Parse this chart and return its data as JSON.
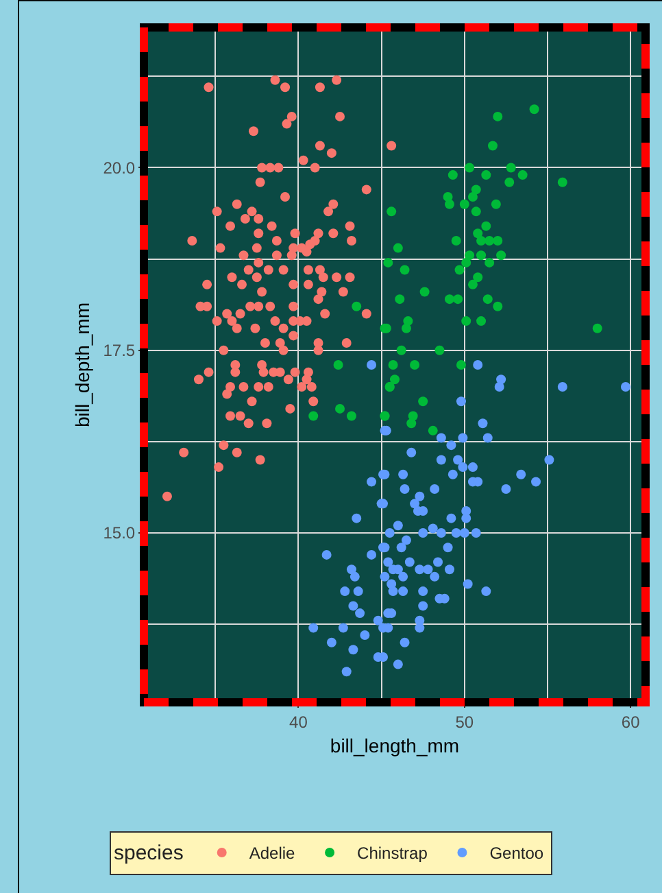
{
  "chart_data": {
    "type": "scatter",
    "xlabel": "bill_length_mm",
    "ylabel": "bill_depth_mm",
    "legend_title": "species",
    "legend": "bottom",
    "grid": true,
    "marker": "circle",
    "xlim": [
      30.7,
      60.9
    ],
    "ylim": [
      12.68,
      21.92
    ],
    "xticks": [
      40,
      50,
      60
    ],
    "yticks": [
      {
        "value": 15,
        "label": "15.0"
      },
      {
        "value": 17.5,
        "label": "17.5"
      },
      {
        "value": 20,
        "label": "20.0"
      }
    ],
    "series": [
      {
        "name": "Adelie",
        "color": "#f8766d",
        "x": [
          34.6,
          38.6,
          39.2,
          41.3,
          42.3,
          39.6,
          39.3,
          42.5,
          37.3,
          41.3,
          42.0,
          45.6,
          40.3,
          37.8,
          38.3,
          38.8,
          41.0,
          37.7,
          39.2,
          44.1,
          35.1,
          36.3,
          42.1,
          41.8,
          37.2,
          36.8,
          37.6,
          38.4,
          35.9,
          43.1,
          33.6,
          37.6,
          39.8,
          41.2,
          42.1,
          43.2,
          38.7,
          35.3,
          37.5,
          39.7,
          40.2,
          40.7,
          41.0,
          36.7,
          38.7,
          39.6,
          40.5,
          37.6,
          39.1,
          37.0,
          38.2,
          40.6,
          41.3,
          41.5,
          36.0,
          37.5,
          42.3,
          43.1,
          40.6,
          39.7,
          34.5,
          36.6,
          37.8,
          41.4,
          42.7,
          34.1,
          34.5,
          37.1,
          37.6,
          38.3,
          39.7,
          41.2,
          41.6,
          44.1,
          35.7,
          36.5,
          35.1,
          36.3,
          37.4,
          36.0,
          38.6,
          39.1,
          39.7,
          40.1,
          40.5,
          39.7,
          38.0,
          38.9,
          39.1,
          41.2,
          41.2,
          42.9,
          35.5,
          34.6,
          34.0,
          36.2,
          36.2,
          35.9,
          35.7,
          36.7,
          37.2,
          37.8,
          37.9,
          38.5,
          38.9,
          37.6,
          38.2,
          39.4,
          39.8,
          40.5,
          40.6,
          40.2,
          40.8,
          40.9,
          39.5,
          35.9,
          36.5,
          37.0,
          38.1,
          35.5,
          36.3,
          33.1,
          37.7,
          35.2,
          32.1
        ],
        "values": [
          21.1,
          21.2,
          21.1,
          21.1,
          21.2,
          20.7,
          20.6,
          20.7,
          20.5,
          20.3,
          20.2,
          20.3,
          20.1,
          20.0,
          20.0,
          20.0,
          20.0,
          19.8,
          19.6,
          19.7,
          19.4,
          19.5,
          19.5,
          19.4,
          19.4,
          19.3,
          19.3,
          19.2,
          19.2,
          19.2,
          19.0,
          19.1,
          19.1,
          19.1,
          19.1,
          19.0,
          19.0,
          18.9,
          18.9,
          18.9,
          18.9,
          18.95,
          19.0,
          18.8,
          18.8,
          18.8,
          18.85,
          18.7,
          18.6,
          18.6,
          18.6,
          18.6,
          18.6,
          18.5,
          18.5,
          18.5,
          18.5,
          18.5,
          18.4,
          18.4,
          18.4,
          18.4,
          18.3,
          18.3,
          18.3,
          18.1,
          18.1,
          18.1,
          18.1,
          18.1,
          18.1,
          18.2,
          18.0,
          18.0,
          18.0,
          18.0,
          17.9,
          17.8,
          17.8,
          17.9,
          17.9,
          17.8,
          17.9,
          17.9,
          17.9,
          17.7,
          17.6,
          17.6,
          17.5,
          17.6,
          17.5,
          17.6,
          17.5,
          17.2,
          17.1,
          17.3,
          17.2,
          17.0,
          16.9,
          17.0,
          16.8,
          17.3,
          17.2,
          17.2,
          17.2,
          17.0,
          17.0,
          17.1,
          17.2,
          17.1,
          17.2,
          17.0,
          17.0,
          16.8,
          16.7,
          16.6,
          16.6,
          16.5,
          16.5,
          16.2,
          16.1,
          16.1,
          16.0,
          15.9,
          15.5
        ]
      },
      {
        "name": "Chinstrap",
        "color": "#00ba38",
        "x": [
          54.2,
          52.0,
          51.7,
          49.3,
          50.3,
          51.3,
          52.8,
          53.5,
          52.7,
          55.9,
          50.7,
          50.5,
          49.0,
          49.1,
          50.0,
          50.7,
          51.9,
          45.6,
          51.3,
          50.8,
          51.0,
          51.5,
          52.0,
          49.5,
          46.0,
          50.3,
          51.0,
          51.5,
          52.2,
          45.4,
          46.4,
          49.7,
          50.1,
          47.6,
          50.8,
          50.5,
          46.1,
          49.1,
          49.6,
          51.4,
          52.0,
          58.0,
          46.6,
          46.5,
          50.1,
          51.0,
          45.3,
          46.2,
          48.5,
          43.5,
          45.2,
          42.4,
          40.9,
          42.5,
          43.2,
          45.2,
          45.7,
          45.5,
          47.0,
          45.8,
          45.5,
          49.8,
          47.5,
          45.2,
          46.9,
          46.8,
          48.1
        ],
        "values": [
          20.8,
          20.7,
          20.3,
          19.9,
          20.0,
          19.9,
          20.0,
          19.9,
          19.8,
          19.8,
          19.7,
          19.6,
          19.6,
          19.5,
          19.5,
          19.4,
          19.5,
          19.4,
          19.2,
          19.1,
          19.0,
          19.0,
          19.0,
          19.0,
          18.9,
          18.8,
          18.8,
          18.7,
          18.8,
          18.7,
          18.6,
          18.6,
          18.7,
          18.3,
          18.5,
          18.4,
          18.2,
          18.2,
          18.2,
          18.2,
          18.1,
          17.8,
          17.9,
          17.8,
          17.9,
          17.9,
          17.8,
          17.5,
          17.5,
          18.1,
          17.8,
          17.3,
          16.6,
          16.7,
          16.6,
          16.6,
          17.3,
          17.0,
          17.3,
          17.1,
          17.0,
          17.3,
          16.8,
          16.6,
          16.6,
          16.5,
          16.4
        ]
      },
      {
        "name": "Gentoo",
        "color": "#619cff",
        "x": [
          44.4,
          45.2,
          44.4,
          45.2,
          45.0,
          43.5,
          41.7,
          44.4,
          45.2,
          43.2,
          43.4,
          42.8,
          43.6,
          45.7,
          45.2,
          45.7,
          43.3,
          43.7,
          44.8,
          45.4,
          40.9,
          42.7,
          44.0,
          42.0,
          43.3,
          44.8,
          42.9,
          50.8,
          52.2,
          52.1,
          55.9,
          59.7,
          49.8,
          45.3,
          51.1,
          51.4,
          49.9,
          48.6,
          49.2,
          49.6,
          49.9,
          50.5,
          46.8,
          48.6,
          49.3,
          55.1,
          53.4,
          54.3,
          52.5,
          50.5,
          50.8,
          46.3,
          45.1,
          46.4,
          48.2,
          47.3,
          47.0,
          47.2,
          47.5,
          49.2,
          50.1,
          50.1,
          45.1,
          46.0,
          45.5,
          47.5,
          48.1,
          48.6,
          49.5,
          50.0,
          50.7,
          46.5,
          46.2,
          45.1,
          49.0,
          45.4,
          46.0,
          46.7,
          47.3,
          47.8,
          48.4,
          49.1,
          46.3,
          45.6,
          46.3,
          47.5,
          48.2,
          48.5,
          48.8,
          50.2,
          51.3,
          45.4,
          45.6,
          47.5,
          47.3,
          47.3,
          45.1,
          46.4,
          45.1,
          46.0
        ],
        "values": [
          17.3,
          16.4,
          15.7,
          15.8,
          15.4,
          15.2,
          14.7,
          14.7,
          14.8,
          14.5,
          14.4,
          14.2,
          14.2,
          14.5,
          14.4,
          14.2,
          14.0,
          13.9,
          13.8,
          13.7,
          13.7,
          13.7,
          13.6,
          13.5,
          13.4,
          13.3,
          13.1,
          17.3,
          17.1,
          17.0,
          17.0,
          17.0,
          16.8,
          16.4,
          16.5,
          16.3,
          16.3,
          16.3,
          16.2,
          16.0,
          15.9,
          15.9,
          16.1,
          16.0,
          15.8,
          16.0,
          15.8,
          15.7,
          15.6,
          15.7,
          15.7,
          15.8,
          15.8,
          15.6,
          15.6,
          15.5,
          15.4,
          15.3,
          15.3,
          15.2,
          15.3,
          15.2,
          15.4,
          15.1,
          15.0,
          15.0,
          15.06,
          15.0,
          15.0,
          15.0,
          15.0,
          14.9,
          14.8,
          14.8,
          14.8,
          14.6,
          14.5,
          14.6,
          14.5,
          14.5,
          14.6,
          14.5,
          14.4,
          14.3,
          14.2,
          14.2,
          14.4,
          14.1,
          14.1,
          14.3,
          14.2,
          13.9,
          13.9,
          14.0,
          13.8,
          13.7,
          13.7,
          13.5,
          13.3,
          13.2
        ]
      }
    ]
  }
}
